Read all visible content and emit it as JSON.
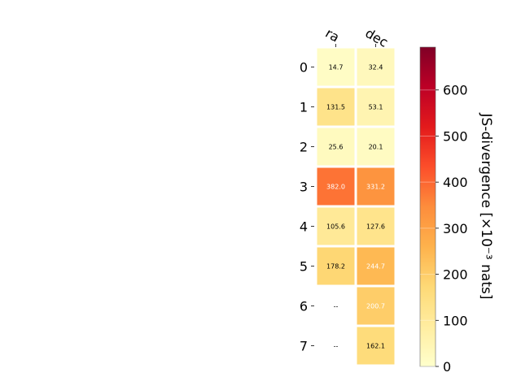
{
  "chart_data": {
    "type": "heatmap",
    "columns": [
      "ra",
      "dec"
    ],
    "rows": [
      "0",
      "1",
      "2",
      "3",
      "4",
      "5",
      "6",
      "7"
    ],
    "values": [
      [
        14.7,
        32.4
      ],
      [
        131.5,
        53.1
      ],
      [
        25.6,
        20.1
      ],
      [
        382.0,
        331.2
      ],
      [
        105.6,
        127.6
      ],
      [
        178.2,
        244.7
      ],
      [
        null,
        200.7
      ],
      [
        null,
        162.1
      ]
    ],
    "cell_labels": [
      [
        "14.7",
        "32.4"
      ],
      [
        "131.5",
        "53.1"
      ],
      [
        "25.6",
        "20.1"
      ],
      [
        "382.0",
        "331.2"
      ],
      [
        "105.6",
        "127.6"
      ],
      [
        "178.2",
        "244.7"
      ],
      [
        "--",
        "200.7"
      ],
      [
        "--",
        "162.1"
      ]
    ],
    "colorbar": {
      "label": "JS-divergence [×10⁻³ nats]",
      "range": [
        0,
        693
      ],
      "ticks": [
        0,
        100,
        200,
        300,
        400,
        500,
        600
      ],
      "colormap": "YlOrRd"
    }
  }
}
